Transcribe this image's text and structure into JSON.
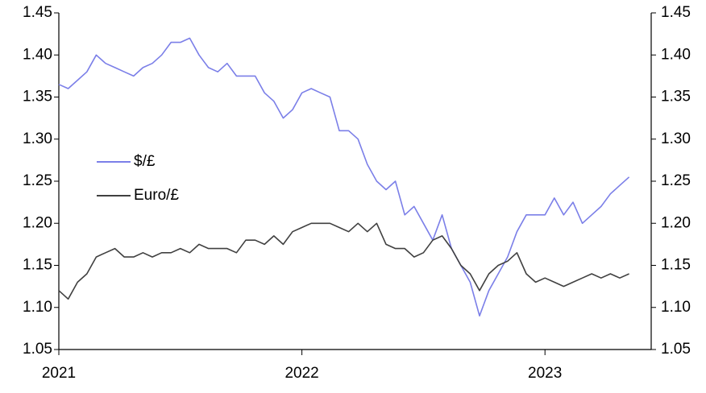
{
  "chart_data": {
    "type": "line",
    "categories": [
      "2021",
      null,
      null,
      null,
      null,
      null,
      null,
      null,
      null,
      null,
      null,
      null,
      null,
      null,
      null,
      null,
      null,
      null,
      null,
      null,
      null,
      null,
      null,
      null,
      null,
      null,
      "2022",
      null,
      null,
      null,
      null,
      null,
      null,
      null,
      null,
      null,
      null,
      null,
      null,
      null,
      null,
      null,
      null,
      null,
      null,
      null,
      null,
      null,
      null,
      null,
      null,
      null,
      "2023",
      null,
      null,
      null,
      null,
      null,
      null,
      null,
      null,
      null
    ],
    "series": [
      {
        "name": "$/£",
        "color": "#7b7fe8",
        "values": [
          1.365,
          1.36,
          1.37,
          1.38,
          1.4,
          1.39,
          1.385,
          1.38,
          1.375,
          1.385,
          1.39,
          1.4,
          1.415,
          1.415,
          1.42,
          1.4,
          1.385,
          1.38,
          1.39,
          1.375,
          1.375,
          1.375,
          1.355,
          1.345,
          1.325,
          1.335,
          1.355,
          1.36,
          1.355,
          1.35,
          1.31,
          1.31,
          1.3,
          1.27,
          1.25,
          1.24,
          1.25,
          1.21,
          1.22,
          1.2,
          1.18,
          1.21,
          1.17,
          1.15,
          1.13,
          1.09,
          1.12,
          1.14,
          1.16,
          1.19,
          1.21,
          1.21,
          1.21,
          1.23,
          1.21,
          1.225,
          1.2,
          1.21,
          1.22,
          1.235,
          1.245,
          1.255
        ]
      },
      {
        "name": "Euro/£",
        "color": "#404040",
        "values": [
          1.12,
          1.11,
          1.13,
          1.14,
          1.16,
          1.165,
          1.17,
          1.16,
          1.16,
          1.165,
          1.16,
          1.165,
          1.165,
          1.17,
          1.165,
          1.175,
          1.17,
          1.17,
          1.17,
          1.165,
          1.18,
          1.18,
          1.175,
          1.185,
          1.175,
          1.19,
          1.195,
          1.2,
          1.2,
          1.2,
          1.195,
          1.19,
          1.2,
          1.19,
          1.2,
          1.175,
          1.17,
          1.17,
          1.16,
          1.165,
          1.18,
          1.185,
          1.17,
          1.15,
          1.14,
          1.12,
          1.14,
          1.15,
          1.155,
          1.165,
          1.14,
          1.13,
          1.135,
          1.13,
          1.125,
          1.13,
          1.135,
          1.14,
          1.135,
          1.14,
          1.135,
          1.14
        ]
      }
    ],
    "ylim": [
      1.05,
      1.45
    ],
    "yticks": [
      {
        "value": 1.05,
        "label": "1.05"
      },
      {
        "value": 1.1,
        "label": "1.10"
      },
      {
        "value": 1.15,
        "label": "1.15"
      },
      {
        "value": 1.2,
        "label": "1.20"
      },
      {
        "value": 1.25,
        "label": "1.25"
      },
      {
        "value": 1.3,
        "label": "1.30"
      },
      {
        "value": 1.35,
        "label": "1.35"
      },
      {
        "value": 1.4,
        "label": "1.40"
      },
      {
        "value": 1.45,
        "label": "1.45"
      }
    ],
    "y2lim": [
      1.05,
      1.45
    ],
    "y2ticks": [
      {
        "value": 1.05,
        "label": "1.05"
      },
      {
        "value": 1.1,
        "label": "1.10"
      },
      {
        "value": 1.15,
        "label": "1.15"
      },
      {
        "value": 1.2,
        "label": "1.20"
      },
      {
        "value": 1.25,
        "label": "1.25"
      },
      {
        "value": 1.3,
        "label": "1.30"
      },
      {
        "value": 1.35,
        "label": "1.35"
      },
      {
        "value": 1.4,
        "label": "1.40"
      },
      {
        "value": 1.45,
        "label": "1.45"
      }
    ],
    "grid": false,
    "legend": "left"
  }
}
